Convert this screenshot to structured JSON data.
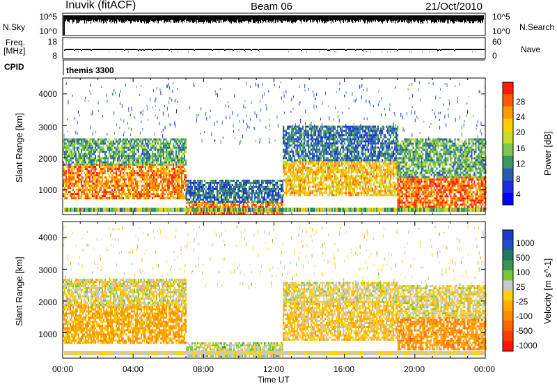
{
  "header": {
    "station": "Inuvik (fitACF)",
    "beam": "Beam 06",
    "date": "21/Oct/2010"
  },
  "noise_panel": {
    "left_label": "N.Sky",
    "left_ticks": [
      "10^5",
      "10^0"
    ],
    "right_label": "N.Search",
    "right_ticks": [
      "10^5",
      "10^0"
    ]
  },
  "freq_panel": {
    "left_label_top": "Freq.",
    "left_label_unit": "[MHz]",
    "left_ticks": [
      "18",
      "8"
    ],
    "right_label": "Nave",
    "right_ticks": [
      "60",
      "0"
    ]
  },
  "cpid_panel": {
    "label": "CPID",
    "value": "themis 3300"
  },
  "axes": {
    "x_ticks": [
      "00:00",
      "04:00",
      "08:00",
      "12:00",
      "16:00",
      "20:00",
      "00:00"
    ],
    "x_label": "Time UT",
    "y_label": "Slant Range [km]",
    "y_ticks": [
      "4000",
      "3000",
      "2000",
      "1000"
    ]
  },
  "power_colorbar": {
    "label": "Power [dB]",
    "ticks": [
      "28",
      "24",
      "20",
      "16",
      "12",
      "8",
      "4"
    ],
    "colors": [
      "#ff1a00",
      "#ff5a00",
      "#ff9a00",
      "#ffcc00",
      "#c8dc28",
      "#78c850",
      "#3c9664",
      "#2860a8",
      "#1a2ee0",
      "#0000ff"
    ]
  },
  "velocity_colorbar": {
    "label": "Velocity [m s^-1]",
    "ticks": [
      "1000",
      "500",
      "100",
      "25",
      "-25",
      "-100",
      "-500",
      "-1000"
    ],
    "colors": [
      "#1e3cc8",
      "#2050c8",
      "#1e7a64",
      "#3c9650",
      "#78c83c",
      "#c8c8c8",
      "#ffd200",
      "#ffaa00",
      "#ff8c00",
      "#ff6400",
      "#ff3c00",
      "#ff1400"
    ]
  },
  "chart_data": [
    {
      "type": "heatmap",
      "title": "Power [dB]",
      "xlabel": "Time UT",
      "ylabel": "Slant Range [km]",
      "xlim": [
        "00:00",
        "24:00"
      ],
      "ylim": [
        200,
        4500
      ],
      "clim": [
        0,
        32
      ],
      "scatter_regions": [
        {
          "t_start": 0.0,
          "t_end": 7.0,
          "range_start": 700,
          "range_end": 1800,
          "power_db": 26
        },
        {
          "t_start": 0.0,
          "t_end": 7.0,
          "range_start": 1800,
          "range_end": 2600,
          "power_db": 12
        },
        {
          "t_start": 7.0,
          "t_end": 12.5,
          "range_start": 250,
          "range_end": 600,
          "power_db": 27
        },
        {
          "t_start": 7.0,
          "t_end": 12.5,
          "range_start": 600,
          "range_end": 1300,
          "power_db": 8
        },
        {
          "t_start": 12.5,
          "t_end": 19.0,
          "range_start": 800,
          "range_end": 1900,
          "power_db": 22
        },
        {
          "t_start": 12.5,
          "t_end": 19.0,
          "range_start": 1900,
          "range_end": 3000,
          "power_db": 8
        },
        {
          "t_start": 19.0,
          "t_end": 24.0,
          "range_start": 400,
          "range_end": 1400,
          "power_db": 28
        },
        {
          "t_start": 19.0,
          "t_end": 24.0,
          "range_start": 1400,
          "range_end": 2600,
          "power_db": 12
        }
      ]
    },
    {
      "type": "heatmap",
      "title": "Velocity [m s^-1]",
      "xlabel": "Time UT",
      "ylabel": "Slant Range [km]",
      "xlim": [
        "00:00",
        "24:00"
      ],
      "ylim": [
        200,
        4500
      ],
      "clim": [
        -1000,
        1000
      ],
      "scatter_regions": [
        {
          "t_start": 0.0,
          "t_end": 7.0,
          "range_start": 700,
          "range_end": 1900,
          "velocity": -300
        },
        {
          "t_start": 0.0,
          "t_end": 7.0,
          "range_start": 1900,
          "range_end": 2700,
          "velocity": 0
        },
        {
          "t_start": 7.0,
          "t_end": 12.5,
          "range_start": 250,
          "range_end": 700,
          "velocity": 150
        },
        {
          "t_start": 12.5,
          "t_end": 19.0,
          "range_start": 800,
          "range_end": 2000,
          "velocity": -150
        },
        {
          "t_start": 12.5,
          "t_end": 19.0,
          "range_start": 2000,
          "range_end": 2600,
          "velocity": 0
        },
        {
          "t_start": 19.0,
          "t_end": 24.0,
          "range_start": 500,
          "range_end": 1500,
          "velocity": -400
        },
        {
          "t_start": 19.0,
          "t_end": 24.0,
          "range_start": 1500,
          "range_end": 2500,
          "velocity": 0
        }
      ]
    }
  ]
}
